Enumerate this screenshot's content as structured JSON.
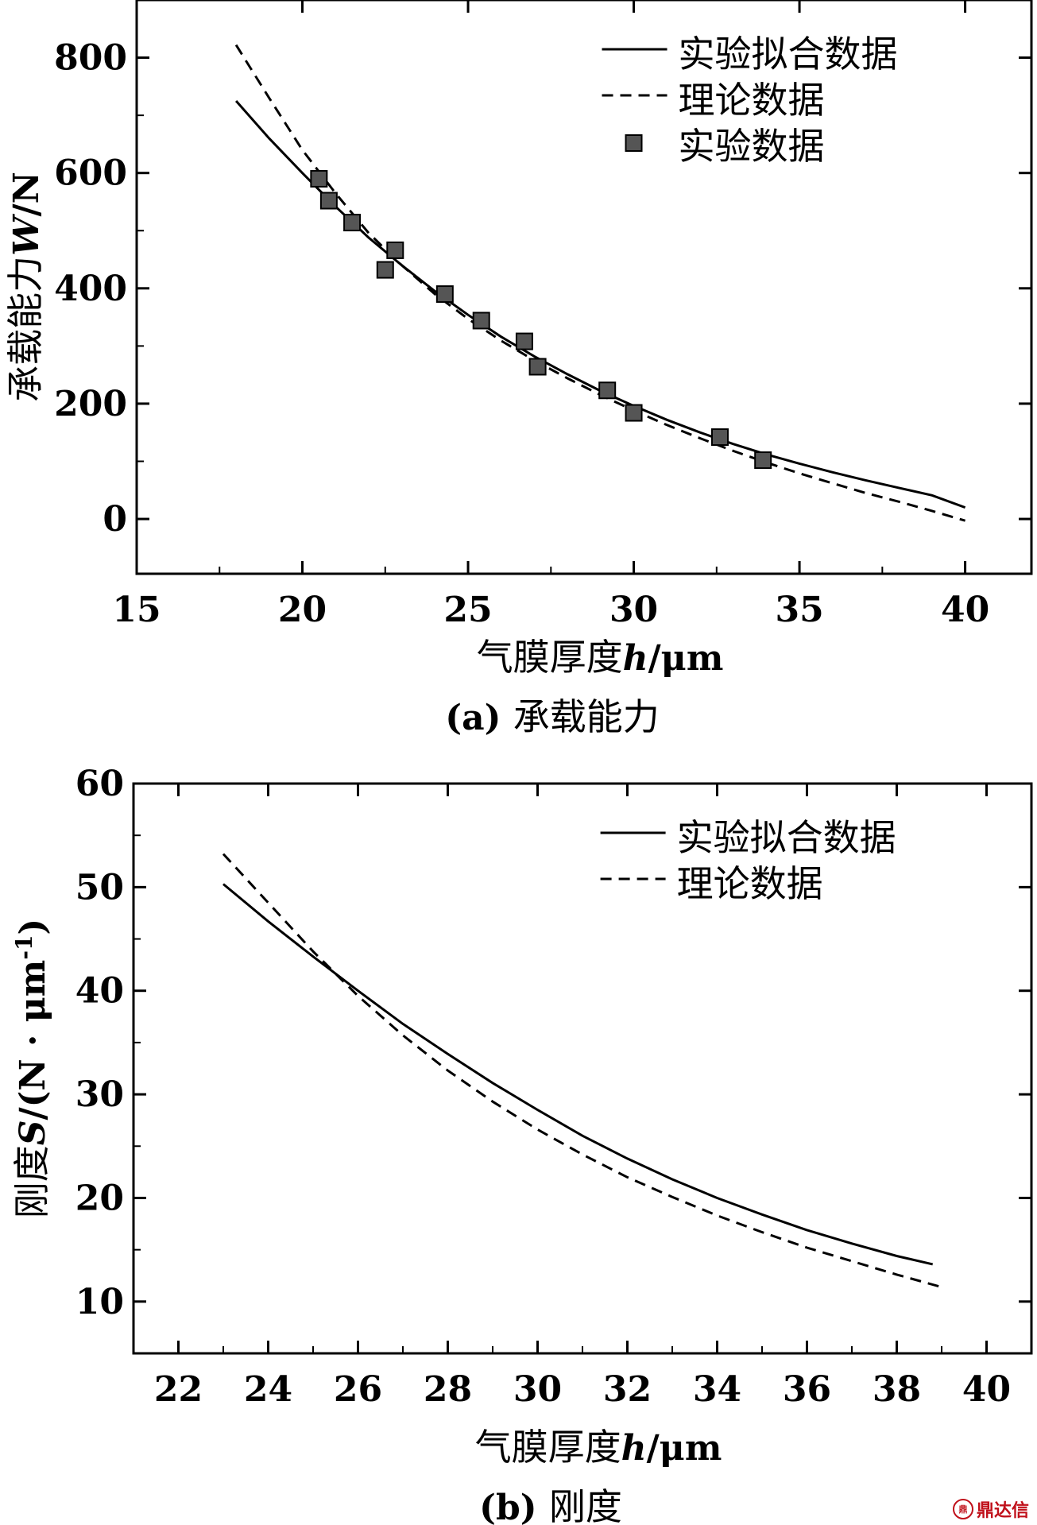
{
  "chart_data": [
    {
      "type": "line",
      "caption": "(a) 承载能力",
      "xlabel_cn": "气膜厚度",
      "xlabel_sym": "h",
      "xlabel_unit": "/μm",
      "ylabel_cn": "承载能力",
      "ylabel_sym": "W",
      "ylabel_unit": "/N",
      "xlim": [
        15,
        42
      ],
      "ylim": [
        -95,
        900
      ],
      "xticks": [
        15,
        20,
        25,
        30,
        35,
        40
      ],
      "yticks": [
        0,
        200,
        400,
        600,
        800
      ],
      "legend_position": "top-right",
      "series": [
        {
          "name": "实验拟合数据",
          "style": "solid",
          "x": [
            18,
            19,
            20,
            21,
            22,
            23,
            24,
            25,
            26,
            27,
            28,
            29,
            30,
            31,
            32,
            33,
            34,
            35,
            36,
            37,
            38,
            39,
            40
          ],
          "y": [
            725,
            660,
            600,
            542,
            488,
            440,
            395,
            354,
            316,
            282,
            251,
            222,
            196,
            172,
            150,
            130,
            112,
            96,
            81,
            67,
            54,
            41,
            20
          ]
        },
        {
          "name": "理论数据",
          "style": "dashed",
          "x": [
            18,
            19,
            20,
            21,
            22,
            23,
            24,
            25,
            26,
            27,
            28,
            29,
            30,
            31,
            32,
            33,
            34,
            35,
            36,
            37,
            38,
            39,
            40
          ],
          "y": [
            822,
            730,
            640,
            565,
            496,
            440,
            390,
            347,
            309,
            275,
            244,
            215,
            188,
            163,
            140,
            118,
            98,
            79,
            62,
            45,
            30,
            14,
            -3
          ]
        },
        {
          "name": "实验数据",
          "style": "marker",
          "x": [
            20.5,
            20.8,
            21.5,
            22.5,
            22.8,
            24.3,
            25.4,
            26.7,
            27.1,
            29.2,
            30.0,
            32.6,
            33.9
          ],
          "y": [
            590,
            552,
            514,
            432,
            466,
            390,
            344,
            308,
            264,
            223,
            184,
            142,
            102
          ]
        }
      ]
    },
    {
      "type": "line",
      "caption": "(b) 刚度",
      "xlabel_cn": "气膜厚度",
      "xlabel_sym": "h",
      "xlabel_unit": "/μm",
      "ylabel_cn": "刚度",
      "ylabel_sym": "S",
      "ylabel_unit": "/(N · μm",
      "ylabel_sup": "-1",
      "ylabel_close": ")",
      "xlim": [
        21,
        41
      ],
      "ylim": [
        5,
        60
      ],
      "xticks": [
        22,
        24,
        26,
        28,
        30,
        32,
        34,
        36,
        38,
        40
      ],
      "yticks": [
        10,
        20,
        30,
        40,
        50,
        60
      ],
      "legend_position": "top-right",
      "series": [
        {
          "name": "实验拟合数据",
          "style": "solid",
          "x": [
            23,
            24,
            25,
            26,
            27,
            28,
            29,
            30,
            31,
            32,
            33,
            34,
            35,
            36,
            37,
            38,
            38.8
          ],
          "y": [
            50.3,
            46.7,
            43.3,
            40.0,
            36.8,
            33.9,
            31.1,
            28.5,
            26.0,
            23.8,
            21.8,
            20.0,
            18.4,
            16.9,
            15.6,
            14.4,
            13.6
          ]
        },
        {
          "name": "理论数据",
          "style": "dashed",
          "x": [
            23,
            24,
            25,
            26,
            27,
            28,
            29,
            30,
            31,
            32,
            33,
            34,
            35,
            36,
            37,
            38,
            39
          ],
          "y": [
            53.2,
            48.5,
            43.8,
            39.5,
            35.7,
            32.3,
            29.3,
            26.6,
            24.2,
            22.0,
            20.1,
            18.3,
            16.7,
            15.2,
            13.9,
            12.6,
            11.4
          ]
        }
      ]
    }
  ],
  "watermark": "鼎达信"
}
